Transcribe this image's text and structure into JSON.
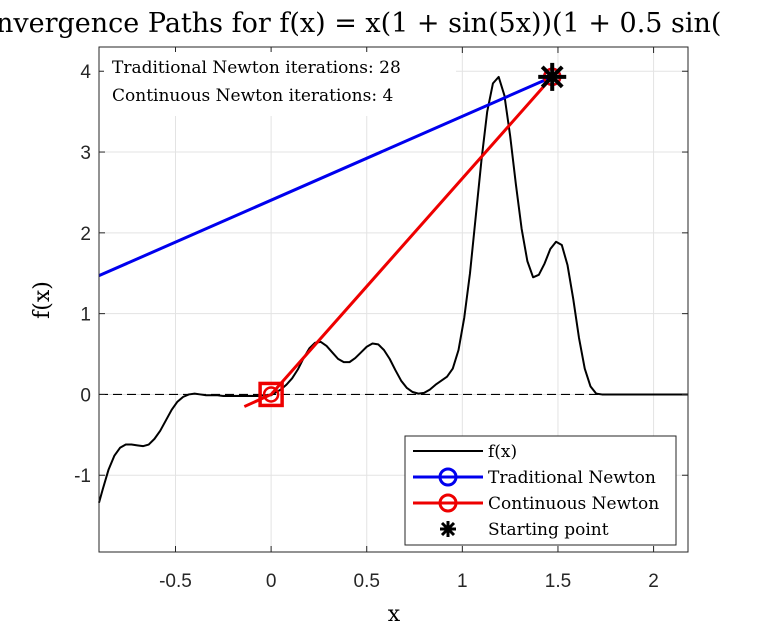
{
  "chart_data": {
    "type": "line",
    "title": "nvergence Paths for f(x) = x(1 + sin(5x))(1 + 0.5 sin(",
    "xlabel": "x",
    "ylabel": "f(x)",
    "xlim": [
      -0.9,
      2.18
    ],
    "ylim": [
      -1.95,
      4.3
    ],
    "grid": true,
    "x_ticks": [
      -0.5,
      0,
      0.5,
      1,
      1.5,
      2
    ],
    "x_tick_labels": [
      "-0.5",
      "0",
      "0.5",
      "1",
      "1.5",
      "2"
    ],
    "y_ticks": [
      -1,
      0,
      1,
      2,
      3,
      4
    ],
    "y_tick_labels": [
      "-1",
      "0",
      "1",
      "2",
      "3",
      "4"
    ],
    "zero_line": {
      "y": 0,
      "style": "dashed"
    },
    "annotations": [
      "Traditional Newton iterations: 28",
      "Continuous Newton iterations: 4"
    ],
    "legend": {
      "position": "bottom-right",
      "entries": [
        "f(x)",
        "Traditional Newton",
        "Continuous Newton",
        "Starting point"
      ]
    },
    "series": [
      {
        "name": "f(x)",
        "color": "#000000",
        "x": [
          -0.9,
          -0.88,
          -0.85,
          -0.82,
          -0.79,
          -0.76,
          -0.73,
          -0.7,
          -0.67,
          -0.64,
          -0.61,
          -0.58,
          -0.55,
          -0.52,
          -0.49,
          -0.46,
          -0.43,
          -0.4,
          -0.37,
          -0.34,
          -0.31,
          -0.28,
          -0.25,
          -0.22,
          -0.19,
          -0.16,
          -0.13,
          -0.1,
          -0.07,
          -0.04,
          -0.01,
          0.0,
          0.02,
          0.05,
          0.08,
          0.11,
          0.14,
          0.17,
          0.2,
          0.23,
          0.26,
          0.29,
          0.32,
          0.35,
          0.38,
          0.41,
          0.44,
          0.47,
          0.5,
          0.53,
          0.56,
          0.59,
          0.62,
          0.65,
          0.68,
          0.71,
          0.74,
          0.77,
          0.8,
          0.83,
          0.86,
          0.89,
          0.92,
          0.95,
          0.98,
          1.01,
          1.04,
          1.07,
          1.1,
          1.13,
          1.16,
          1.19,
          1.22,
          1.25,
          1.28,
          1.31,
          1.34,
          1.37,
          1.4,
          1.43,
          1.46,
          1.49,
          1.52,
          1.55,
          1.58,
          1.61,
          1.64,
          1.67,
          1.7,
          1.73,
          1.76,
          1.79,
          1.82,
          1.85,
          1.88,
          1.91,
          1.94,
          1.97,
          2.0,
          2.03,
          2.06,
          2.09,
          2.12,
          2.15,
          2.18
        ],
        "y": [
          -1.34,
          -1.17,
          -0.93,
          -0.76,
          -0.66,
          -0.62,
          -0.62,
          -0.63,
          -0.64,
          -0.62,
          -0.55,
          -0.45,
          -0.32,
          -0.19,
          -0.09,
          -0.03,
          0.0,
          0.01,
          0.0,
          -0.01,
          -0.01,
          -0.01,
          -0.02,
          -0.02,
          -0.02,
          -0.02,
          -0.02,
          -0.02,
          -0.02,
          -0.01,
          -0.01,
          -0.01,
          0.02,
          0.06,
          0.12,
          0.2,
          0.31,
          0.45,
          0.57,
          0.64,
          0.65,
          0.6,
          0.52,
          0.44,
          0.4,
          0.4,
          0.45,
          0.52,
          0.59,
          0.63,
          0.62,
          0.55,
          0.44,
          0.3,
          0.17,
          0.08,
          0.03,
          0.01,
          0.02,
          0.06,
          0.12,
          0.17,
          0.22,
          0.32,
          0.55,
          0.95,
          1.5,
          2.2,
          2.9,
          3.5,
          3.85,
          3.93,
          3.7,
          3.2,
          2.6,
          2.05,
          1.65,
          1.45,
          1.48,
          1.62,
          1.8,
          1.89,
          1.85,
          1.6,
          1.18,
          0.7,
          0.32,
          0.1,
          0.01,
          0.0,
          0.0,
          0.0,
          0.0,
          0.0,
          0.0,
          0.0,
          0.0,
          0.0,
          0.0,
          0.0,
          0.0,
          0.0,
          0.0,
          0.0,
          0.0
        ]
      },
      {
        "name": "Traditional Newton",
        "color": "#0000ee",
        "x": [
          1.47,
          -0.9
        ],
        "y": [
          3.93,
          1.47
        ]
      },
      {
        "name": "Continuous Newton",
        "color": "#ee0000",
        "x": [
          1.47,
          0.0,
          -0.14
        ],
        "y": [
          3.93,
          0.0,
          -0.15
        ],
        "marker_x": 0.0,
        "marker_y": 0.0
      },
      {
        "name": "Starting point",
        "color": "#000000",
        "x": [
          1.47
        ],
        "y": [
          3.93
        ]
      }
    ]
  }
}
